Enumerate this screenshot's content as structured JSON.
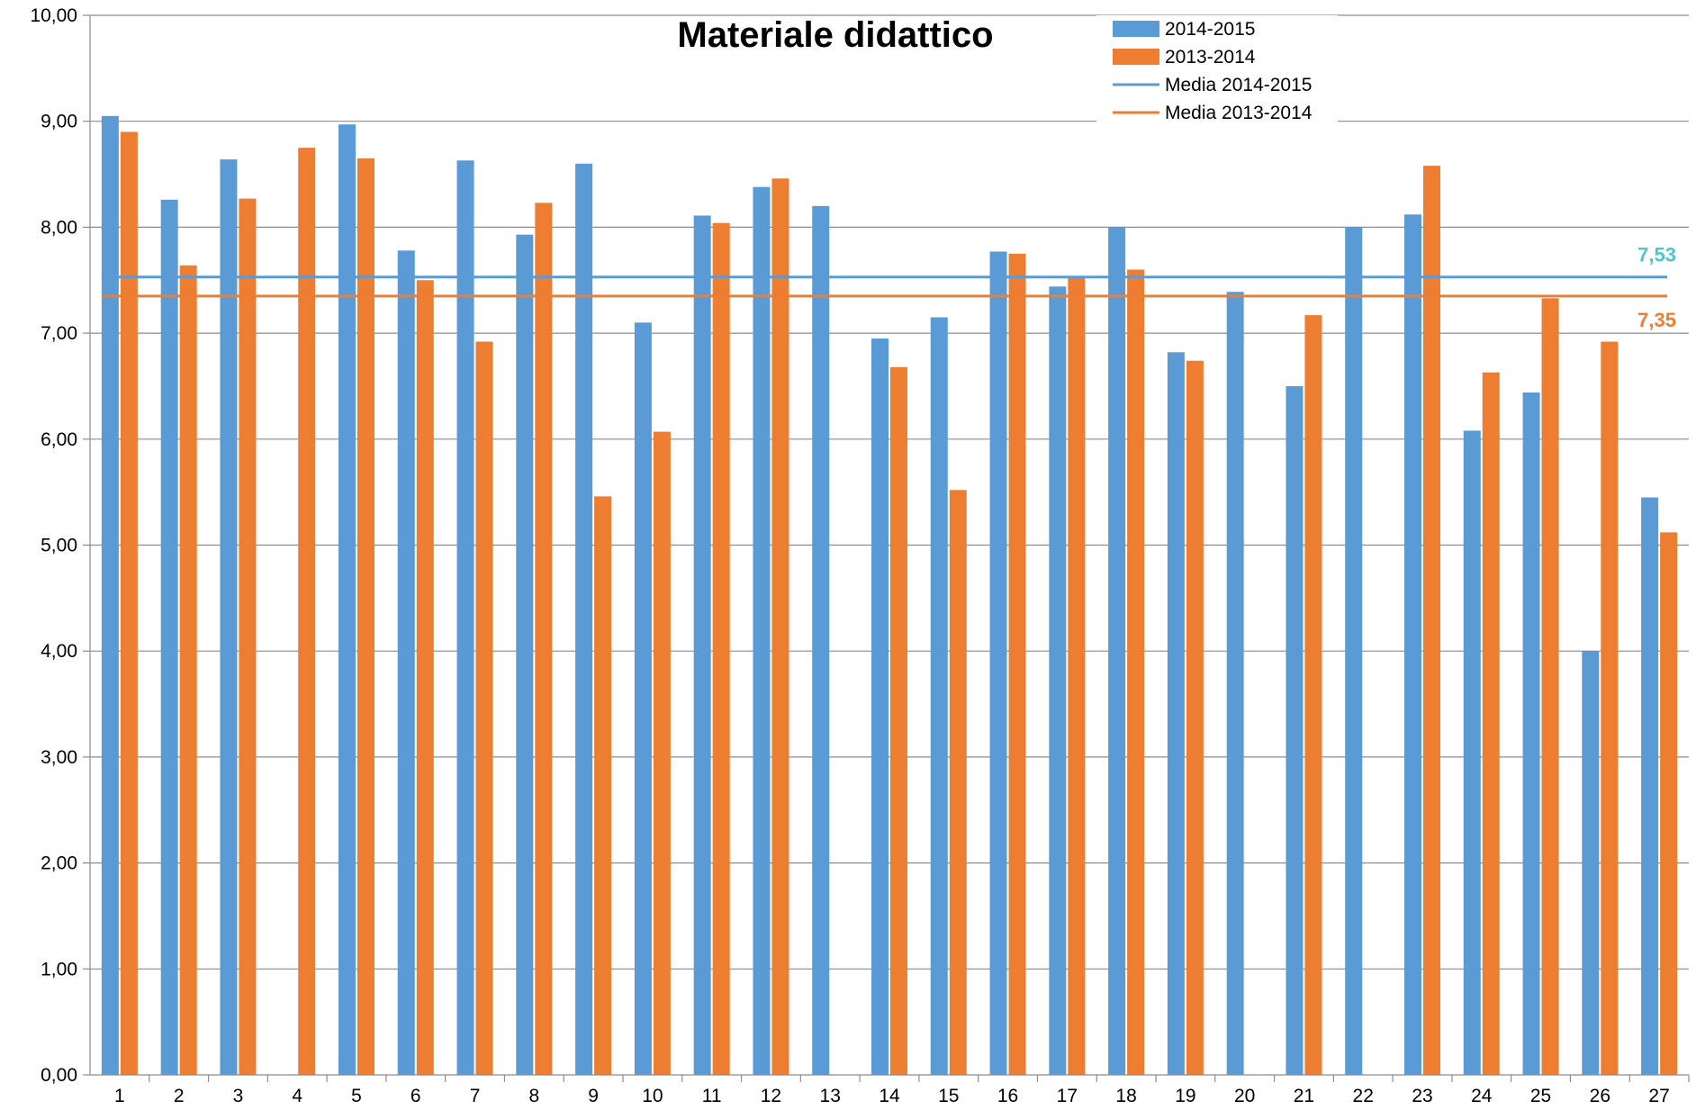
{
  "chart_data": {
    "type": "bar",
    "title": "Materiale didattico",
    "xlabel": "",
    "ylabel": "",
    "ylim": [
      0,
      10
    ],
    "y_ticks": [
      "0,00",
      "1,00",
      "2,00",
      "3,00",
      "4,00",
      "5,00",
      "6,00",
      "7,00",
      "8,00",
      "9,00",
      "10,00"
    ],
    "categories": [
      "1",
      "2",
      "3",
      "4",
      "5",
      "6",
      "7",
      "8",
      "9",
      "10",
      "11",
      "12",
      "13",
      "14",
      "15",
      "16",
      "17",
      "18",
      "19",
      "20",
      "21",
      "22",
      "23",
      "24",
      "25",
      "26",
      "27"
    ],
    "series": [
      {
        "name": "2014-2015",
        "color": "#5B9BD5",
        "values": [
          9.05,
          8.26,
          8.64,
          null,
          8.97,
          7.78,
          8.63,
          7.93,
          8.6,
          7.1,
          8.11,
          8.38,
          8.2,
          6.95,
          7.15,
          7.77,
          7.44,
          8.0,
          6.82,
          7.39,
          6.5,
          8.0,
          8.12,
          6.08,
          6.44,
          4.0,
          5.45
        ]
      },
      {
        "name": "2013-2014",
        "color": "#ED7D31",
        "values": [
          8.9,
          7.64,
          8.27,
          8.75,
          8.65,
          7.5,
          6.92,
          8.23,
          5.46,
          6.07,
          8.04,
          8.46,
          null,
          6.68,
          5.52,
          7.75,
          7.52,
          7.6,
          6.74,
          null,
          7.17,
          null,
          8.58,
          6.63,
          7.33,
          6.92,
          5.12
        ]
      }
    ],
    "reference_lines": [
      {
        "name": "Media 2014-2015",
        "value": 7.53,
        "label": "7,53",
        "color": "#5B9BD5",
        "label_color": "#4BC8C8"
      },
      {
        "name": "Media 2013-2014",
        "value": 7.35,
        "label": "7,35",
        "color": "#ED7D31",
        "label_color": "#ED7D31"
      }
    ],
    "grid": true,
    "legend_position": "top-right"
  }
}
